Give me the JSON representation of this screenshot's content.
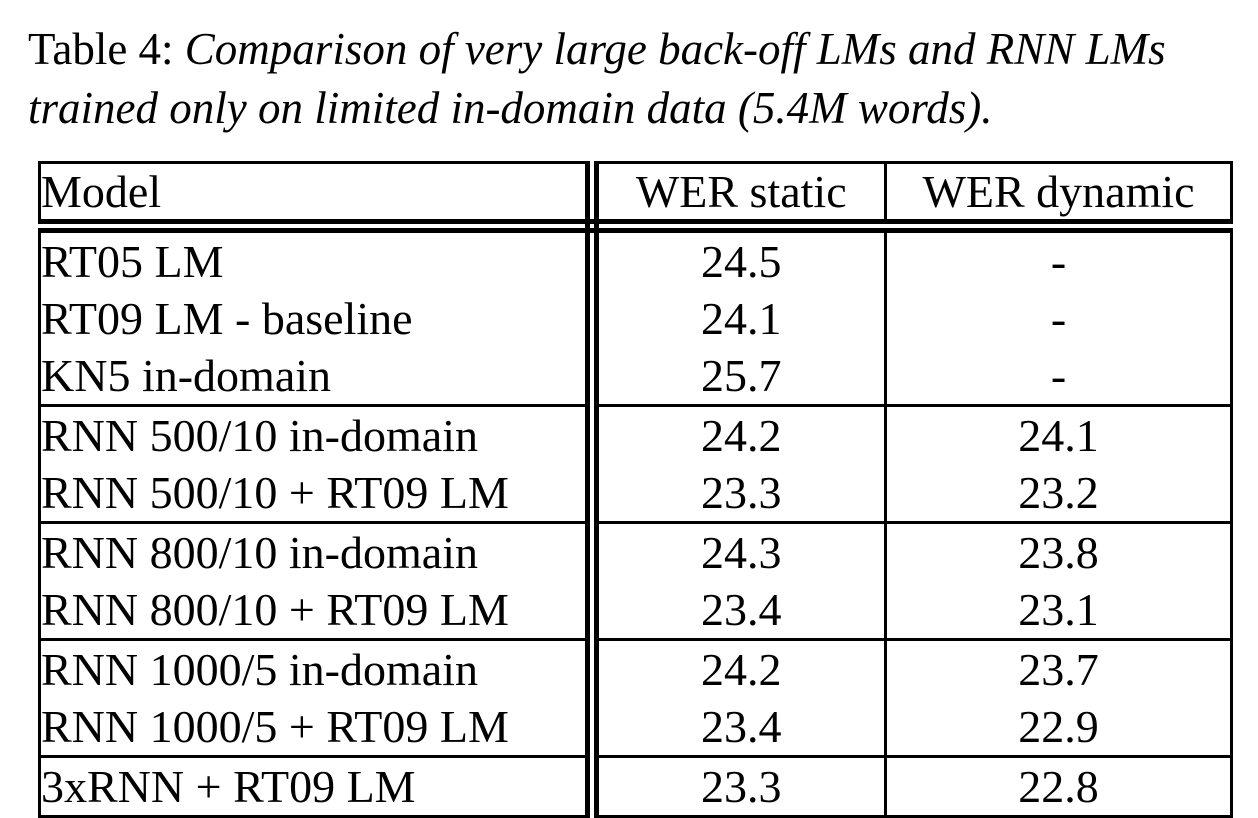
{
  "caption": {
    "label": "Table 4:",
    "line1": "Comparison of very large back-off LMs and RNN LMs",
    "line2": "trained only on limited in-domain data (5.4M words)."
  },
  "table": {
    "columns": [
      "Model",
      "WER static",
      "WER dynamic"
    ],
    "groups": [
      {
        "rows": [
          {
            "cells": [
              "RT05 LM",
              "24.5",
              "-"
            ],
            "bold": [
              false,
              false,
              false
            ]
          },
          {
            "cells": [
              "RT09 LM - baseline",
              "24.1",
              "-"
            ],
            "bold": [
              false,
              false,
              false
            ]
          },
          {
            "cells": [
              "KN5 in-domain",
              "25.7",
              "-"
            ],
            "bold": [
              false,
              false,
              false
            ]
          }
        ]
      },
      {
        "rows": [
          {
            "cells": [
              "RNN 500/10 in-domain",
              "24.2",
              "24.1"
            ],
            "bold": [
              false,
              false,
              false
            ]
          },
          {
            "cells": [
              "RNN 500/10 + RT09 LM",
              "23.3",
              "23.2"
            ],
            "bold": [
              false,
              true,
              false
            ]
          }
        ]
      },
      {
        "rows": [
          {
            "cells": [
              "RNN 800/10 in-domain",
              "24.3",
              "23.8"
            ],
            "bold": [
              false,
              false,
              false
            ]
          },
          {
            "cells": [
              "RNN 800/10 + RT09 LM",
              "23.4",
              "23.1"
            ],
            "bold": [
              false,
              false,
              false
            ]
          }
        ]
      },
      {
        "rows": [
          {
            "cells": [
              "RNN 1000/5 in-domain",
              "24.2",
              "23.7"
            ],
            "bold": [
              false,
              false,
              false
            ]
          },
          {
            "cells": [
              "RNN 1000/5 + RT09 LM",
              "23.4",
              "22.9"
            ],
            "bold": [
              false,
              false,
              false
            ]
          }
        ]
      },
      {
        "rows": [
          {
            "cells": [
              "3xRNN + RT09 LM",
              "23.3",
              "22.8"
            ],
            "bold": [
              false,
              true,
              true
            ]
          }
        ]
      }
    ]
  },
  "colors": {
    "text": "#000000",
    "background": "#ffffff",
    "rule": "#000000"
  }
}
